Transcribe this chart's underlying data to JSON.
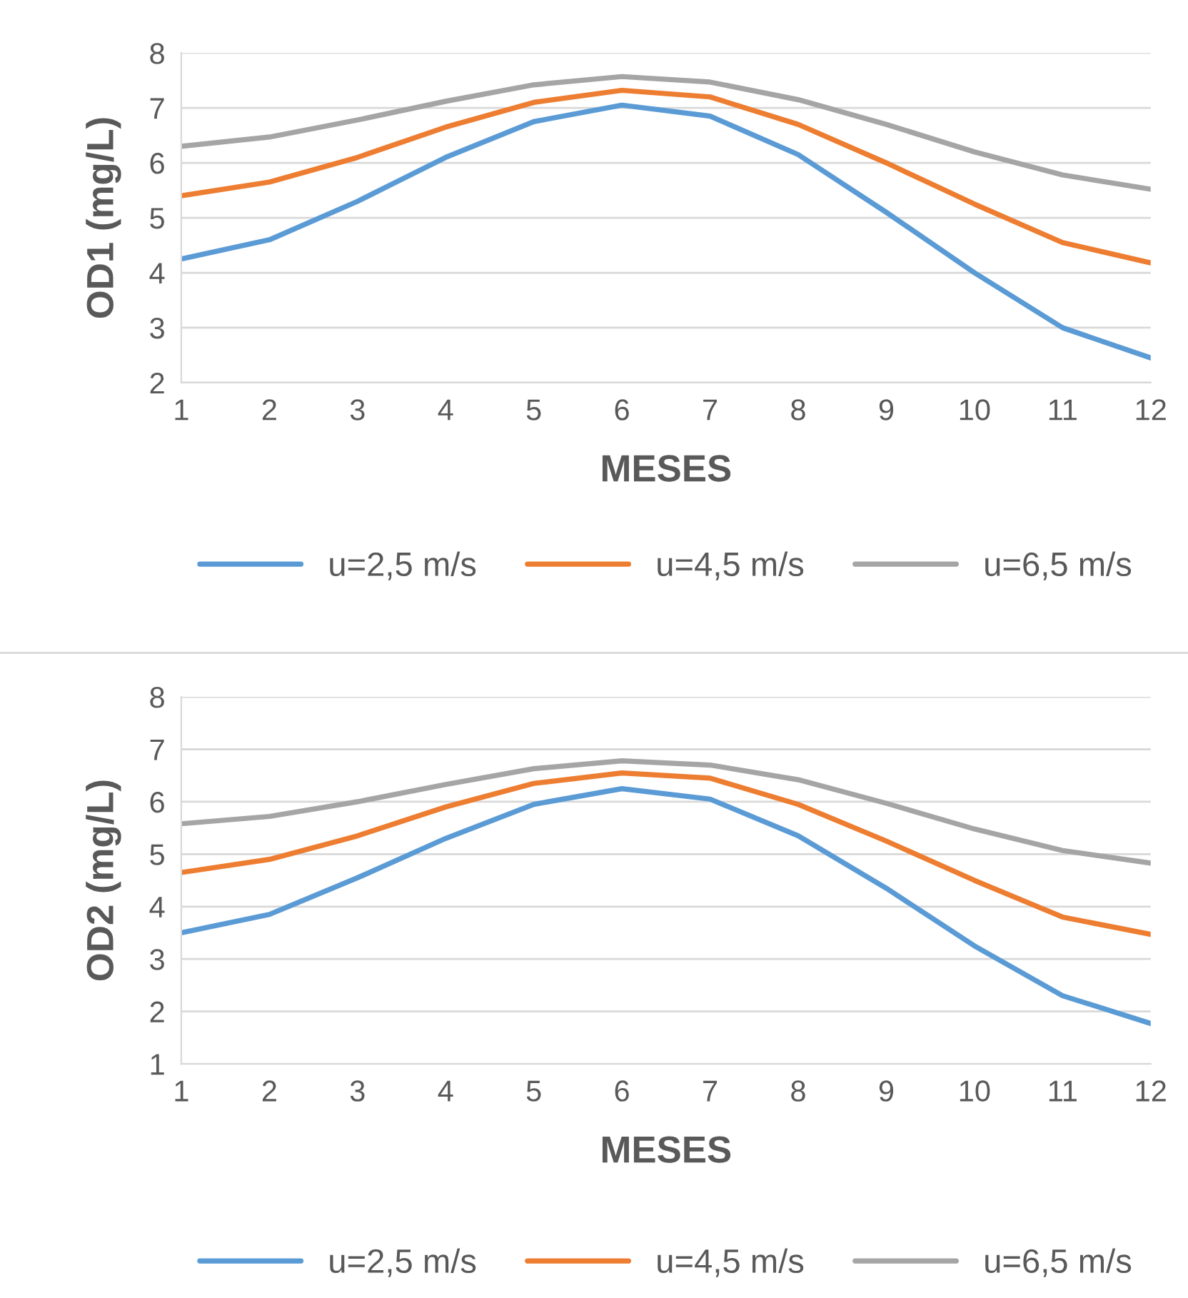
{
  "chart_data": [
    {
      "type": "line",
      "xlabel": "MESES",
      "ylabel": "OD1 (mg/L)",
      "x": [
        1,
        2,
        3,
        4,
        5,
        6,
        7,
        8,
        9,
        10,
        11,
        12
      ],
      "xlim": [
        1,
        12
      ],
      "xticks": [
        1,
        2,
        3,
        4,
        5,
        6,
        7,
        8,
        9,
        10,
        11,
        12
      ],
      "ylim": [
        2,
        8
      ],
      "yticks": [
        2,
        3,
        4,
        5,
        6,
        7,
        8
      ],
      "grid": "y",
      "legend": "bottom",
      "series": [
        {
          "name": "u=2,5 m/s",
          "color": "#5b9bd5",
          "values": [
            4.25,
            4.6,
            5.3,
            6.1,
            6.75,
            7.05,
            6.85,
            6.15,
            5.1,
            4.0,
            3.0,
            2.45
          ]
        },
        {
          "name": "u=4,5 m/s",
          "color": "#ed7d31",
          "values": [
            5.4,
            5.65,
            6.1,
            6.65,
            7.1,
            7.32,
            7.2,
            6.7,
            6.0,
            5.25,
            4.55,
            4.18
          ]
        },
        {
          "name": "u=6,5 m/s",
          "color": "#a5a5a5",
          "values": [
            6.3,
            6.47,
            6.78,
            7.12,
            7.42,
            7.57,
            7.47,
            7.15,
            6.7,
            6.2,
            5.78,
            5.52
          ]
        }
      ]
    },
    {
      "type": "line",
      "xlabel": "MESES",
      "ylabel": "OD2 (mg/L)",
      "x": [
        1,
        2,
        3,
        4,
        5,
        6,
        7,
        8,
        9,
        10,
        11,
        12
      ],
      "xlim": [
        1,
        12
      ],
      "xticks": [
        1,
        2,
        3,
        4,
        5,
        6,
        7,
        8,
        9,
        10,
        11,
        12
      ],
      "ylim": [
        1,
        8
      ],
      "yticks": [
        1,
        2,
        3,
        4,
        5,
        6,
        7,
        8
      ],
      "grid": "y",
      "legend": "bottom",
      "series": [
        {
          "name": "u=2,5 m/s",
          "color": "#5b9bd5",
          "values": [
            3.5,
            3.85,
            4.55,
            5.3,
            5.95,
            6.25,
            6.05,
            5.35,
            4.35,
            3.25,
            2.3,
            1.77
          ]
        },
        {
          "name": "u=4,5 m/s",
          "color": "#ed7d31",
          "values": [
            4.65,
            4.9,
            5.35,
            5.9,
            6.35,
            6.55,
            6.45,
            5.95,
            5.25,
            4.5,
            3.8,
            3.47
          ]
        },
        {
          "name": "u=6,5 m/s",
          "color": "#a5a5a5",
          "values": [
            5.58,
            5.72,
            6.0,
            6.33,
            6.63,
            6.78,
            6.7,
            6.42,
            5.97,
            5.48,
            5.07,
            4.83
          ]
        }
      ]
    }
  ]
}
